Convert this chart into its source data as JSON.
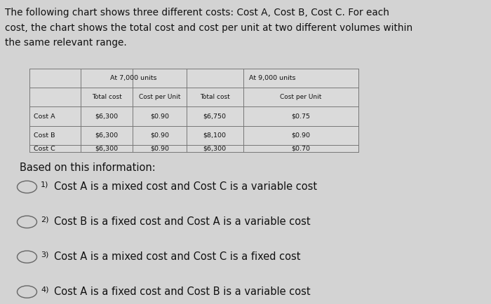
{
  "title_line1": "The following chart shows three different costs: Cost A, Cost B, Cost C. For each",
  "title_line2": "cost, the chart shows the total cost and cost per unit at two different volumes within",
  "title_line3": "the same relevant range.",
  "background_color": "#d3d3d3",
  "table": {
    "header1": [
      "At 7,000 units",
      "At 9,000 units"
    ],
    "header2": [
      "Total cost",
      "Cost per Unit",
      "Total cost",
      "Cost per Unit"
    ],
    "rows": [
      [
        "Cost A",
        "$6,300",
        "$0.90",
        "$6,750",
        "$0.75"
      ],
      [
        "Cost B",
        "$6,300",
        "$0.90",
        "$8,100",
        "$0.90"
      ],
      [
        "Cost C",
        "$6,300",
        "$0.90",
        "$6,300",
        "$0.70"
      ]
    ]
  },
  "based_on_text": "Based on this information:",
  "options": [
    {
      "num": "1)",
      "text": "Cost A is a mixed cost and Cost C is a variable cost"
    },
    {
      "num": "2)",
      "text": "Cost B is a fixed cost and Cost A is a variable cost"
    },
    {
      "num": "3)",
      "text": "Cost A is a mixed cost and Cost C is a fixed cost"
    },
    {
      "num": "4)",
      "text": "Cost A is a fixed cost and Cost B is a variable cost"
    }
  ],
  "text_color": "#111111",
  "table_line_color": "#777777",
  "table_bg": "#d8d8d8"
}
